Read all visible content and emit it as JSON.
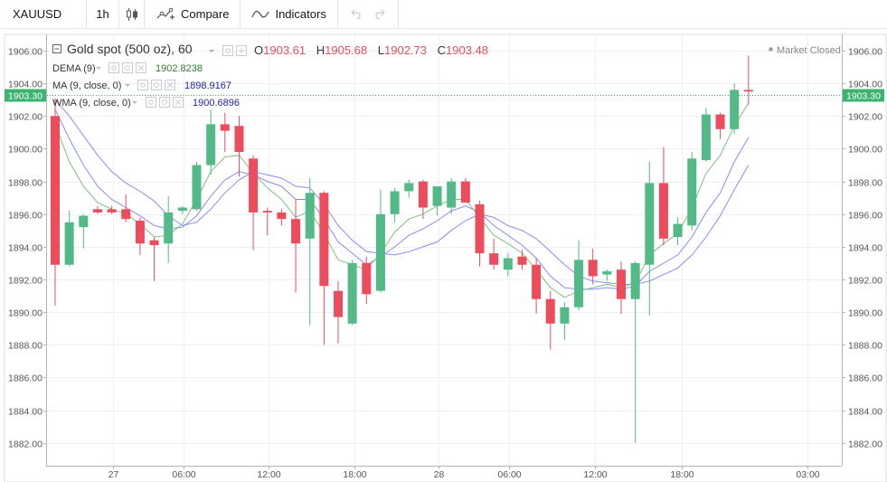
{
  "toolbar": {
    "symbol": "XAUUSD",
    "interval": "1h",
    "compare_label": "Compare",
    "indicators_label": "Indicators",
    "candle_icon": "candlestick-icon",
    "compare_icon": "compare-icon",
    "indicators_icon": "indicators-icon",
    "undo_icon": "undo-icon",
    "redo_icon": "redo-icon"
  },
  "legend": {
    "title": "Gold spot (500 oz), 60",
    "o_label": "O",
    "o_value": "1903.61",
    "h_label": "H",
    "h_value": "1905.68",
    "l_label": "L",
    "l_value": "1902.73",
    "c_label": "C",
    "c_value": "1903.48",
    "status": "Market Closed"
  },
  "indicators": [
    {
      "label": "DEMA (9)",
      "value": "1902.8238",
      "color": "#2e7d32"
    },
    {
      "label": "MA (9, close, 0)",
      "value": "1898.9167",
      "color": "#1f1fb4"
    },
    {
      "label": "WMA (9, close, 0)",
      "value": "1900.6896",
      "color": "#1f1fb4"
    }
  ],
  "colors": {
    "up": "#53b987",
    "down": "#eb4d5c",
    "dema": "#7fbf7f",
    "ma": "#8a8cf0",
    "wma": "#8a8cf0",
    "price_line": "#3cb371"
  },
  "chart_data": {
    "type": "candlestick",
    "y_ticks": [
      "1906.00",
      "1904.00",
      "1902.00",
      "1900.00",
      "1898.00",
      "1896.00",
      "1894.00",
      "1892.00",
      "1890.00",
      "1888.00",
      "1886.00",
      "1884.00",
      "1882.00"
    ],
    "x_ticks": [
      "27",
      "06:00",
      "12:00",
      "18:00",
      "28",
      "06:00",
      "12:00",
      "18:00",
      "03:00"
    ],
    "current_price": "1903.30",
    "ylim": [
      1880.6,
      1907.0
    ],
    "candles": [
      {
        "o": 1902.0,
        "h": 1903.1,
        "l": 1890.4,
        "c": 1892.9
      },
      {
        "o": 1892.9,
        "h": 1896.2,
        "l": 1892.8,
        "c": 1895.5
      },
      {
        "o": 1895.2,
        "h": 1896.0,
        "l": 1893.9,
        "c": 1895.9
      },
      {
        "o": 1896.3,
        "h": 1896.5,
        "l": 1896.0,
        "c": 1896.1
      },
      {
        "o": 1896.3,
        "h": 1896.5,
        "l": 1896.0,
        "c": 1896.1
      },
      {
        "o": 1896.3,
        "h": 1897.2,
        "l": 1895.5,
        "c": 1895.7
      },
      {
        "o": 1895.6,
        "h": 1895.8,
        "l": 1893.5,
        "c": 1894.2
      },
      {
        "o": 1894.4,
        "h": 1894.6,
        "l": 1891.9,
        "c": 1894.1
      },
      {
        "o": 1894.2,
        "h": 1897.1,
        "l": 1893.0,
        "c": 1896.1
      },
      {
        "o": 1896.2,
        "h": 1896.5,
        "l": 1896.0,
        "c": 1896.4
      },
      {
        "o": 1896.3,
        "h": 1899.2,
        "l": 1896.2,
        "c": 1899.0
      },
      {
        "o": 1899.0,
        "h": 1902.4,
        "l": 1898.4,
        "c": 1901.5
      },
      {
        "o": 1901.5,
        "h": 1902.2,
        "l": 1899.8,
        "c": 1901.1
      },
      {
        "o": 1901.4,
        "h": 1902.0,
        "l": 1898.3,
        "c": 1899.8
      },
      {
        "o": 1899.4,
        "h": 1899.6,
        "l": 1893.8,
        "c": 1896.1
      },
      {
        "o": 1896.2,
        "h": 1896.4,
        "l": 1894.7,
        "c": 1896.1
      },
      {
        "o": 1896.1,
        "h": 1896.3,
        "l": 1895.3,
        "c": 1895.7
      },
      {
        "o": 1895.7,
        "h": 1896.9,
        "l": 1891.2,
        "c": 1894.2
      },
      {
        "o": 1894.5,
        "h": 1898.2,
        "l": 1889.2,
        "c": 1897.3
      },
      {
        "o": 1897.3,
        "h": 1897.4,
        "l": 1888.0,
        "c": 1891.6
      },
      {
        "o": 1891.3,
        "h": 1891.9,
        "l": 1888.1,
        "c": 1889.7
      },
      {
        "o": 1889.3,
        "h": 1893.2,
        "l": 1889.2,
        "c": 1893.0
      },
      {
        "o": 1893.0,
        "h": 1893.4,
        "l": 1890.5,
        "c": 1891.1
      },
      {
        "o": 1891.3,
        "h": 1897.5,
        "l": 1891.2,
        "c": 1896.0
      },
      {
        "o": 1896.0,
        "h": 1897.6,
        "l": 1895.5,
        "c": 1897.4
      },
      {
        "o": 1897.4,
        "h": 1898.1,
        "l": 1897.0,
        "c": 1897.9
      },
      {
        "o": 1898.0,
        "h": 1898.1,
        "l": 1895.7,
        "c": 1896.4
      },
      {
        "o": 1896.5,
        "h": 1897.7,
        "l": 1895.9,
        "c": 1897.7
      },
      {
        "o": 1896.4,
        "h": 1898.2,
        "l": 1896.0,
        "c": 1898.0
      },
      {
        "o": 1898.0,
        "h": 1898.2,
        "l": 1896.7,
        "c": 1896.7
      },
      {
        "o": 1896.6,
        "h": 1896.8,
        "l": 1892.8,
        "c": 1893.6
      },
      {
        "o": 1893.6,
        "h": 1894.5,
        "l": 1892.6,
        "c": 1892.9
      },
      {
        "o": 1892.6,
        "h": 1893.6,
        "l": 1892.2,
        "c": 1893.3
      },
      {
        "o": 1893.4,
        "h": 1893.8,
        "l": 1892.6,
        "c": 1892.9
      },
      {
        "o": 1892.9,
        "h": 1893.3,
        "l": 1889.9,
        "c": 1890.8
      },
      {
        "o": 1890.8,
        "h": 1891.3,
        "l": 1887.7,
        "c": 1889.3
      },
      {
        "o": 1889.3,
        "h": 1890.6,
        "l": 1888.3,
        "c": 1890.3
      },
      {
        "o": 1890.3,
        "h": 1894.4,
        "l": 1890.1,
        "c": 1893.2
      },
      {
        "o": 1893.2,
        "h": 1893.9,
        "l": 1891.7,
        "c": 1892.2
      },
      {
        "o": 1892.3,
        "h": 1892.6,
        "l": 1891.9,
        "c": 1892.5
      },
      {
        "o": 1892.6,
        "h": 1893.1,
        "l": 1889.9,
        "c": 1890.8
      },
      {
        "o": 1890.8,
        "h": 1893.1,
        "l": 1882.0,
        "c": 1893.0
      },
      {
        "o": 1892.9,
        "h": 1899.2,
        "l": 1889.8,
        "c": 1897.9
      },
      {
        "o": 1897.9,
        "h": 1900.1,
        "l": 1894.1,
        "c": 1894.5
      },
      {
        "o": 1894.6,
        "h": 1895.8,
        "l": 1894.1,
        "c": 1895.4
      },
      {
        "o": 1895.3,
        "h": 1899.8,
        "l": 1895.0,
        "c": 1899.4
      },
      {
        "o": 1899.3,
        "h": 1902.5,
        "l": 1899.2,
        "c": 1902.1
      },
      {
        "o": 1902.1,
        "h": 1902.2,
        "l": 1900.6,
        "c": 1901.2
      },
      {
        "o": 1901.2,
        "h": 1904.0,
        "l": 1900.9,
        "c": 1903.6
      },
      {
        "o": 1903.6,
        "h": 1905.7,
        "l": 1902.7,
        "c": 1903.5
      }
    ],
    "dema": [
      1901.5,
      1899.2,
      1897.7,
      1896.7,
      1896.3,
      1896.0,
      1895.4,
      1894.6,
      1894.7,
      1895.4,
      1896.9,
      1898.6,
      1899.5,
      1899.6,
      1898.5,
      1897.6,
      1896.9,
      1895.8,
      1896.2,
      1894.8,
      1893.2,
      1892.9,
      1892.6,
      1893.6,
      1894.9,
      1895.7,
      1896.0,
      1896.5,
      1896.9,
      1896.9,
      1895.8,
      1894.7,
      1894.2,
      1893.6,
      1892.6,
      1891.5,
      1890.9,
      1891.3,
      1891.5,
      1891.7,
      1891.5,
      1891.8,
      1893.5,
      1894.2,
      1894.8,
      1896.4,
      1898.5,
      1899.6,
      1901.4,
      1902.8
    ],
    "ma": [
      1903.0,
      1902.0,
      1900.8,
      1899.6,
      1898.6,
      1897.9,
      1897.4,
      1896.8,
      1895.9,
      1895.3,
      1895.5,
      1896.3,
      1897.3,
      1898.1,
      1898.6,
      1898.4,
      1898.2,
      1897.7,
      1897.6,
      1896.6,
      1895.3,
      1894.4,
      1893.7,
      1893.6,
      1893.5,
      1893.7,
      1894.0,
      1894.3,
      1895.0,
      1895.6,
      1896.0,
      1895.8,
      1895.3,
      1895.0,
      1894.5,
      1893.7,
      1892.9,
      1892.2,
      1891.9,
      1891.8,
      1891.7,
      1891.7,
      1891.9,
      1892.3,
      1892.7,
      1893.5,
      1894.6,
      1895.9,
      1897.5,
      1899.0
    ],
    "wma": [
      1902.4,
      1900.6,
      1899.0,
      1897.7,
      1896.9,
      1896.4,
      1895.9,
      1895.3,
      1895.1,
      1895.2,
      1895.9,
      1897.1,
      1898.1,
      1898.6,
      1898.4,
      1898.0,
      1897.7,
      1896.9,
      1896.9,
      1895.7,
      1894.3,
      1893.6,
      1892.9,
      1893.4,
      1894.0,
      1894.7,
      1895.1,
      1895.6,
      1896.2,
      1896.5,
      1896.1,
      1895.3,
      1894.7,
      1894.1,
      1893.3,
      1892.2,
      1891.5,
      1891.4,
      1891.4,
      1891.5,
      1891.4,
      1891.6,
      1892.5,
      1893.0,
      1893.5,
      1894.6,
      1896.1,
      1897.3,
      1899.2,
      1900.7
    ]
  }
}
